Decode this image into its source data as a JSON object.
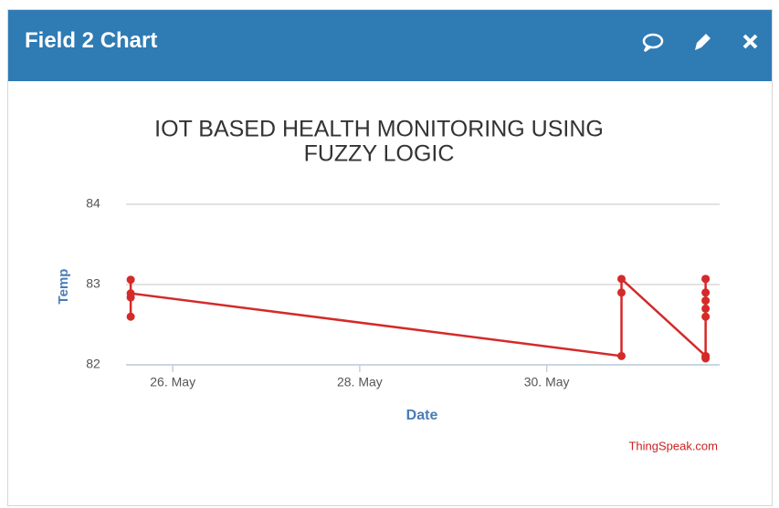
{
  "header": {
    "title": "Field 2 Chart"
  },
  "chart_data": {
    "type": "line",
    "title": [
      "IOT BASED HEALTH MONITORING USING",
      "FUZZY LOGIC"
    ],
    "x_label": "Date",
    "y_label": "Temp",
    "credit": "ThingSpeak.com",
    "xlim": [
      25.5,
      31.85
    ],
    "xticks": [
      {
        "value": 26,
        "label": "26. May"
      },
      {
        "value": 28,
        "label": "28. May"
      },
      {
        "value": 30,
        "label": "30. May"
      }
    ],
    "ylim": [
      82,
      84
    ],
    "yticks": [
      84,
      83,
      82
    ],
    "grid": true,
    "series": [
      {
        "name": "Field 2",
        "color": "#d42a2a",
        "x": [
          25.55,
          25.55,
          25.55,
          25.55,
          30.8,
          30.8,
          30.8,
          31.7,
          31.7,
          31.7,
          31.7,
          31.7,
          31.7,
          31.7,
          31.7,
          31.7
        ],
        "values": [
          83.06,
          82.6,
          82.84,
          82.89,
          82.11,
          82.9,
          83.07,
          82.11,
          83.07,
          82.9,
          82.8,
          82.7,
          82.6,
          82.1,
          83.07,
          82.08
        ]
      }
    ]
  }
}
